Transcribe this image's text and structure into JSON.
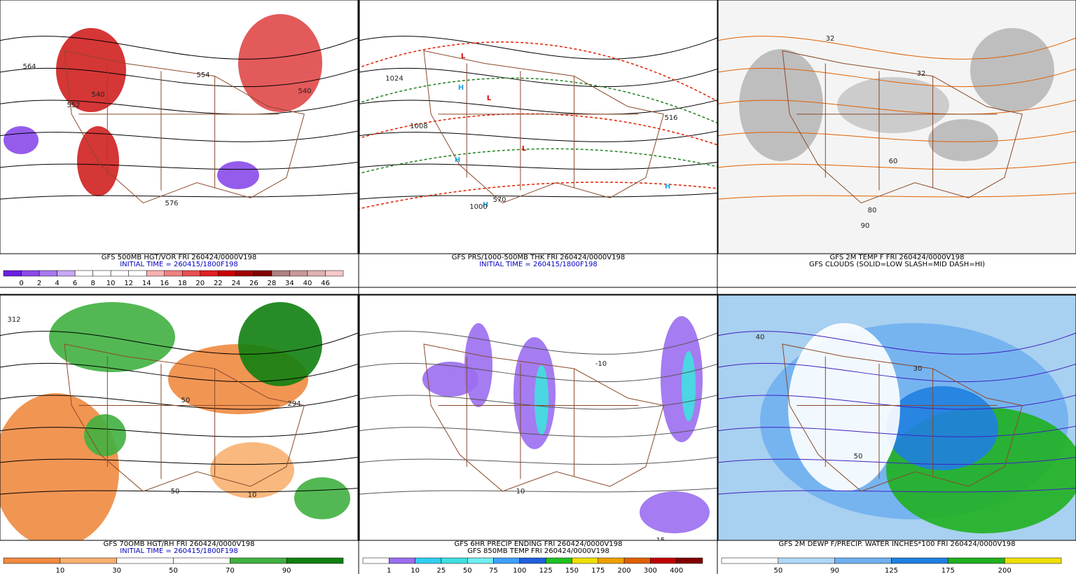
{
  "panels": [
    {
      "captions": [
        "GFS 500MB HGT/VOR FRI 260424/0000V198",
        "INITIAL TIME = 260415/1800F198"
      ],
      "colorbar": {
        "colors": [
          "#6a1fe0",
          "#8a4aea",
          "#a878f0",
          "#c8a8f5",
          "#ffffff",
          "#ffffff",
          "#ffffff",
          "#ffffff",
          "#f8b0b0",
          "#f08080",
          "#e85050",
          "#e02020",
          "#c80000",
          "#a00000",
          "#800000",
          "#b08080",
          "#c89898",
          "#e0b0b0",
          "#f8c8c8"
        ],
        "labels": [
          "0",
          "2",
          "4",
          "6",
          "8",
          "10",
          "12",
          "14",
          "16",
          "18",
          "20",
          "22",
          "24",
          "26",
          "28",
          "34",
          "40",
          "46"
        ]
      },
      "map_labels": [
        "564",
        "540",
        "552",
        "554",
        "576",
        "540"
      ]
    },
    {
      "captions": [
        "GFS PRS/1000-500MB THK FRI 260424/0000V198",
        "INITIAL TIME = 260415/1800F198"
      ],
      "map_labels": [
        "L",
        "L",
        "L",
        "H",
        "H",
        "H",
        "H",
        "1024",
        "1008",
        "1000",
        "516",
        "570"
      ]
    },
    {
      "captions": [
        "GFS 2M TEMP F FRI 260424/0000V198",
        "GFS CLOUDS (SOLID=LOW SLASH=MID DASH=HI)"
      ],
      "map_labels": [
        "32",
        "32",
        "60",
        "80",
        "90"
      ]
    },
    {
      "captions": [
        "GFS 70OMB HGT/RH FRI 260424/0000V198",
        "INITIAL TIME = 260415/1800F198"
      ],
      "colorbar": {
        "colors": [
          "#f08a40",
          "#f8b070",
          "#ffffff",
          "#ffffff",
          "#40b040",
          "#108010"
        ],
        "labels": [
          "10",
          "30",
          "50",
          "70",
          "90"
        ]
      },
      "map_labels": [
        "312",
        "50",
        "10",
        "294",
        "50"
      ]
    },
    {
      "captions": [
        "GFS 6HR PRECIP ENDING FRI 260424/0000V198",
        "GFS 850MB TEMP FRI 260424/0000V198"
      ],
      "colorbar": {
        "colors": [
          "#ffffff",
          "#9b6ef0",
          "#30d0f0",
          "#40e0e0",
          "#70f0f0",
          "#40a0ff",
          "#2060e0",
          "#20c020",
          "#f0e000",
          "#f0a000",
          "#e06000",
          "#c00000",
          "#800000"
        ],
        "labels": [
          "1",
          "10",
          "25",
          "50",
          "75",
          "100",
          "125",
          "150",
          "175",
          "200",
          "300",
          "400"
        ]
      },
      "map_labels": [
        "-10",
        "10",
        "15"
      ]
    },
    {
      "captions": [
        "GFS 2M DEWP F/PRECIP. WATER INCHES*100 FRI 260424/0000V198"
      ],
      "colorbar": {
        "colors": [
          "#ffffff",
          "#b0d8f8",
          "#70b0f0",
          "#2080e0",
          "#20b020",
          "#f0e000"
        ],
        "labels": [
          "50",
          "90",
          "125",
          "175",
          "200"
        ]
      },
      "map_labels": [
        "30",
        "50",
        "40"
      ]
    }
  ]
}
